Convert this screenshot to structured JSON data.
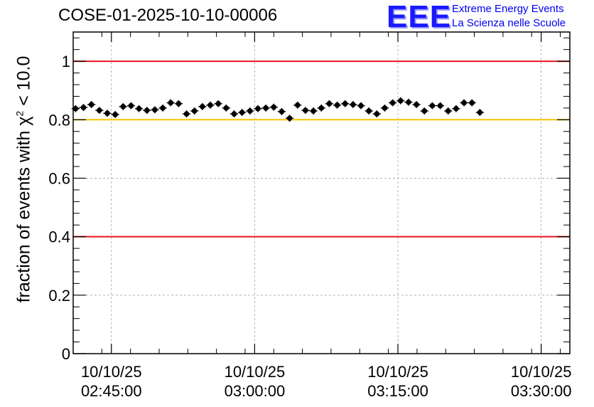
{
  "chart_data": {
    "type": "scatter",
    "title": "COSE-01-2025-10-10-00006",
    "ylabel_prefix": "fraction of events with ",
    "ylabel_symbol": "χ",
    "ylabel_power": "2",
    "ylabel_suffix": " < 10.0",
    "xlabel": "",
    "ylim": [
      0,
      1.1
    ],
    "yticks": [
      0,
      0.2,
      0.4,
      0.6,
      0.8,
      1
    ],
    "ytick_labels": [
      "0",
      "0.2",
      "0.4",
      "0.6",
      "0.8",
      "1"
    ],
    "xlim_minutes": [
      -4,
      48
    ],
    "xticks_minutes": [
      0,
      15,
      30,
      45
    ],
    "xtick_labels": [
      {
        "date": "10/10/25",
        "time": "02:45:00"
      },
      {
        "date": "10/10/25",
        "time": "03:00:00"
      },
      {
        "date": "10/10/25",
        "time": "03:15:00"
      },
      {
        "date": "10/10/25",
        "time": "03:30:00"
      }
    ],
    "grid": true,
    "reference_lines": [
      {
        "name": "upper-limit",
        "y": 1.0,
        "color": "#e8141b"
      },
      {
        "name": "threshold",
        "y": 0.8,
        "color": "#f5c400"
      },
      {
        "name": "lower-limit",
        "y": 0.4,
        "color": "#e8141b"
      }
    ],
    "series": [
      {
        "name": "fraction",
        "color": "#000000",
        "error": 0.012,
        "x_start_minutes": -3.75,
        "x_step_minutes": 0.83,
        "values": [
          0.838,
          0.842,
          0.852,
          0.832,
          0.822,
          0.818,
          0.845,
          0.848,
          0.838,
          0.832,
          0.834,
          0.84,
          0.858,
          0.855,
          0.82,
          0.83,
          0.845,
          0.85,
          0.855,
          0.84,
          0.82,
          0.825,
          0.83,
          0.838,
          0.84,
          0.843,
          0.828,
          0.805,
          0.85,
          0.832,
          0.83,
          0.84,
          0.855,
          0.85,
          0.855,
          0.852,
          0.848,
          0.83,
          0.82,
          0.84,
          0.858,
          0.865,
          0.86,
          0.852,
          0.83,
          0.848,
          0.848,
          0.83,
          0.838,
          0.858,
          0.858,
          0.825
        ]
      }
    ]
  },
  "logo": {
    "mark": "EEE",
    "line1": "Extreme Energy Events",
    "line2": "La Scienza nelle Scuole"
  },
  "colors": {
    "marker": "#000000",
    "grid": "#b4b4b4",
    "red_line": "#e8141b",
    "yellow_line": "#f5c400",
    "logo_blue": "#0000ee"
  }
}
